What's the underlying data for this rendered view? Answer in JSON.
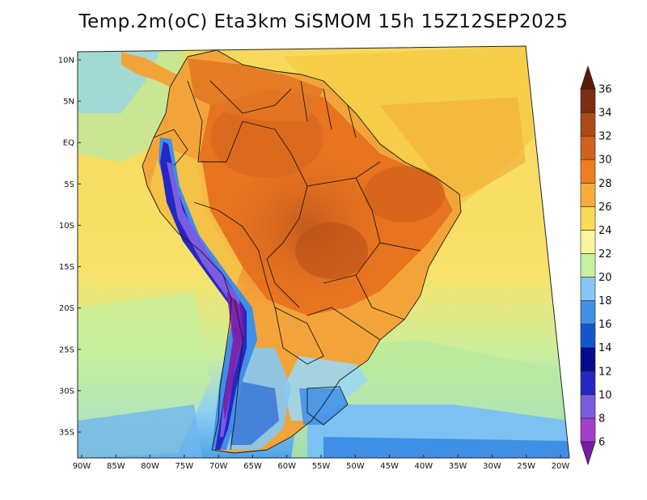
{
  "title": "Temp.2m(oC) Eta3km SiSMOM 15h 15Z12SEP2025",
  "map": {
    "lon_range": [
      -90,
      -20
    ],
    "lat_range": [
      -38,
      12
    ],
    "lon_ticks": [
      {
        "value": -90,
        "label": "90W"
      },
      {
        "value": -85,
        "label": "85W"
      },
      {
        "value": -80,
        "label": "80W"
      },
      {
        "value": -75,
        "label": "75W"
      },
      {
        "value": -70,
        "label": "70W"
      },
      {
        "value": -65,
        "label": "65W"
      },
      {
        "value": -60,
        "label": "60W"
      },
      {
        "value": -55,
        "label": "55W"
      },
      {
        "value": -50,
        "label": "50W"
      },
      {
        "value": -45,
        "label": "45W"
      },
      {
        "value": -40,
        "label": "40W"
      },
      {
        "value": -35,
        "label": "35W"
      },
      {
        "value": -30,
        "label": "30W"
      },
      {
        "value": -25,
        "label": "25W"
      },
      {
        "value": -20,
        "label": "20W"
      }
    ],
    "lat_ticks": [
      {
        "value": 10,
        "label": "10N"
      },
      {
        "value": 5,
        "label": "5N"
      },
      {
        "value": 0,
        "label": "EQ"
      },
      {
        "value": -5,
        "label": "5S"
      },
      {
        "value": -10,
        "label": "10S"
      },
      {
        "value": -15,
        "label": "15S"
      },
      {
        "value": -20,
        "label": "20S"
      },
      {
        "value": -25,
        "label": "25S"
      },
      {
        "value": -30,
        "label": "30S"
      },
      {
        "value": -35,
        "label": "35S"
      }
    ]
  },
  "colorbar": {
    "levels": [
      "6",
      "8",
      "10",
      "12",
      "14",
      "16",
      "18",
      "20",
      "22",
      "24",
      "26",
      "28",
      "30",
      "32",
      "34",
      "36"
    ],
    "colors": [
      "#7a1aa6",
      "#a23fcf",
      "#7a5ce0",
      "#2626c4",
      "#0a0a8c",
      "#1456d0",
      "#3f8fe6",
      "#86c8f4",
      "#c7f0a0",
      "#f8f59a",
      "#f7dc54",
      "#f6ad3c",
      "#ee7e22",
      "#d2601e",
      "#ad4a1a",
      "#7a2e12",
      "#5a1c0a"
    ]
  }
}
